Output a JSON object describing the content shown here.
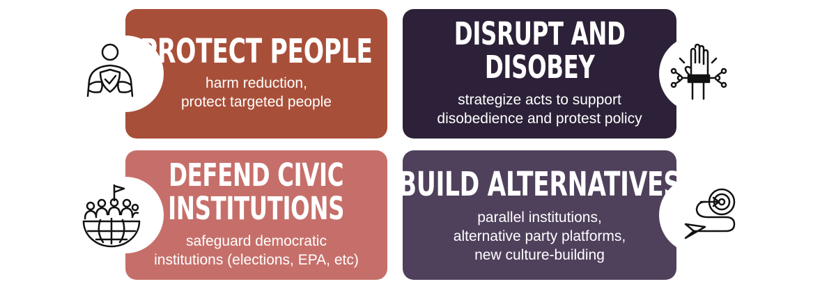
{
  "cards": [
    {
      "title": "PROTECT PEOPLE",
      "desc_lines": [
        "harm reduction,",
        "protect targeted people"
      ],
      "color": "#a84f39",
      "icon": "person-shield-icon"
    },
    {
      "title_lines": [
        "DISRUPT AND",
        "DISOBEY"
      ],
      "desc_lines": [
        "strategize acts to support",
        "disobedience and protest policy"
      ],
      "color": "#2c2138",
      "icon": "raised-fist-broken-chains-icon"
    },
    {
      "title_lines": [
        "DEFEND CIVIC",
        "INSTITUTIONS"
      ],
      "desc_lines": [
        "safeguard democratic",
        "institutions (elections, EPA, etc)"
      ],
      "color": "#c66f6a",
      "icon": "globe-community-flag-icon"
    },
    {
      "title": "BUILD ALTERNATIVES",
      "desc_lines": [
        "parallel institutions,",
        "alternative party platforms,",
        "new culture-building"
      ],
      "color": "#4f405c",
      "icon": "target-path-paper-plane-icon"
    }
  ]
}
